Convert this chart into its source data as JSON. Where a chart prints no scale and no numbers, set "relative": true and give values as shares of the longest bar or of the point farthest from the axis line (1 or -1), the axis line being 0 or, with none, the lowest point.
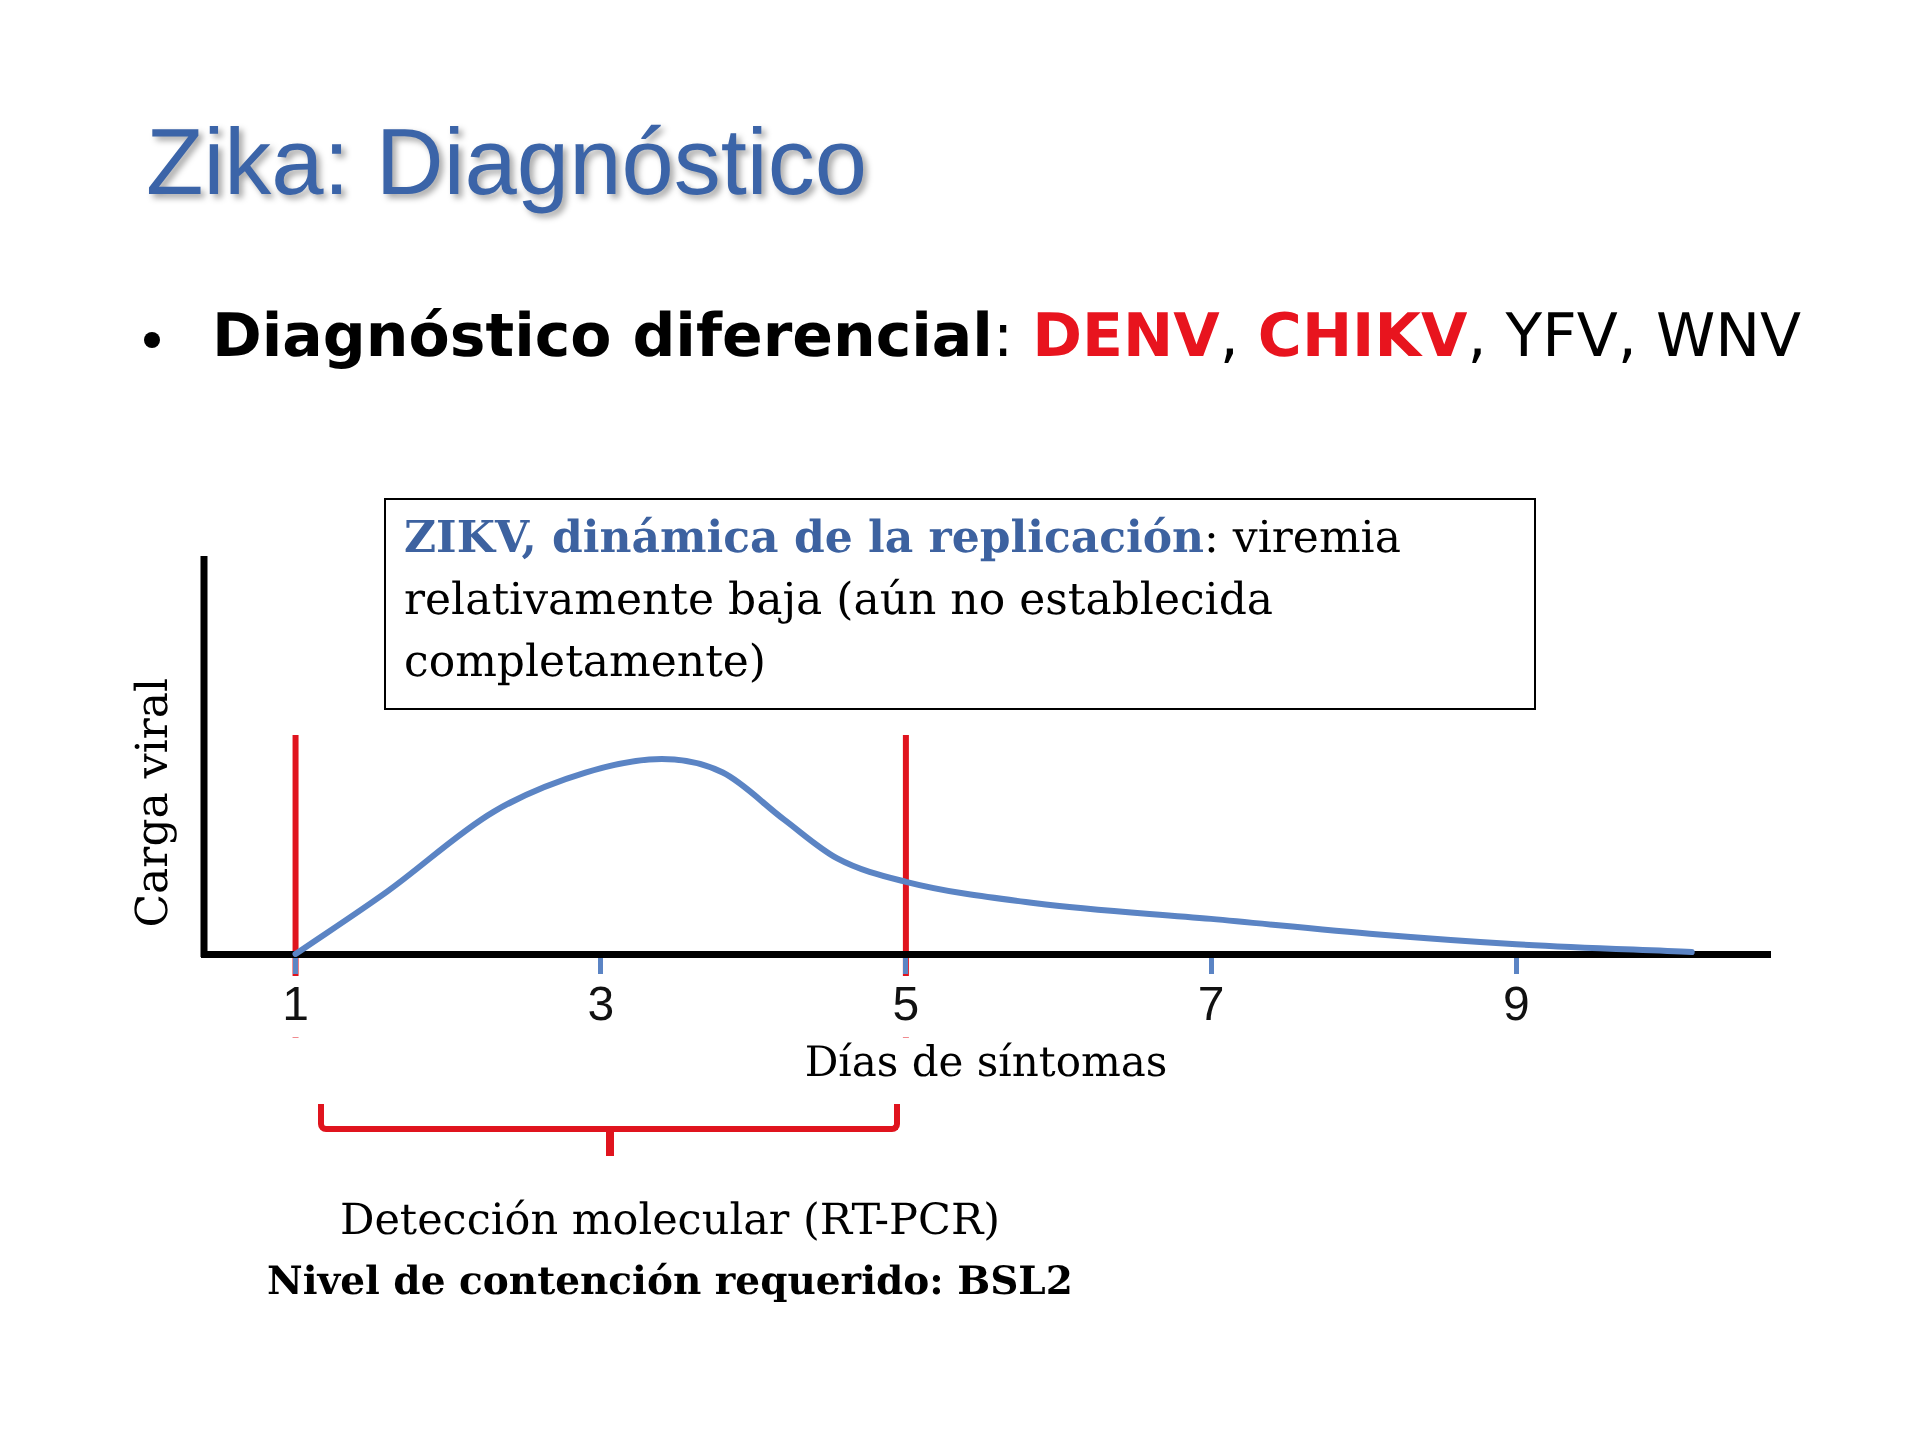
{
  "chart_data": {
    "type": "line",
    "title": "Zika: Diagnóstico",
    "subtitle": "Diagnóstico diferencial: DENV, CHIKV, YFV, WNV",
    "xlabel": "Días de síntomas",
    "ylabel": "Carga viral",
    "annotations": [
      "ZIKV, dinámica de la replicación: viremia relativamente baja (aún no establecida completamente)",
      "Detección molecular (RT-PCR)",
      "Nivel de contención requerido: BSL2"
    ],
    "x": [
      1,
      1.6,
      2.3,
      2.9,
      3.4,
      3.8,
      4.2,
      4.55,
      5,
      5.85,
      7,
      8.1,
      9,
      10.15
    ],
    "values": [
      0,
      0.32,
      0.73,
      0.93,
      1,
      0.93,
      0.69,
      0.49,
      0.37,
      0.26,
      0.18,
      0.1,
      0.05,
      0.01
    ],
    "color": "#5b84c4",
    "relative": true,
    "xlim": [
      0.4,
      10.65
    ],
    "xticks": [
      1,
      3,
      5,
      7,
      9
    ],
    "ref_lines": [
      {
        "axis": "x",
        "value": 1,
        "color": "#e0141e"
      },
      {
        "axis": "x",
        "value": 5,
        "color": "#e0141e"
      }
    ],
    "line_style": "solid"
  }
}
